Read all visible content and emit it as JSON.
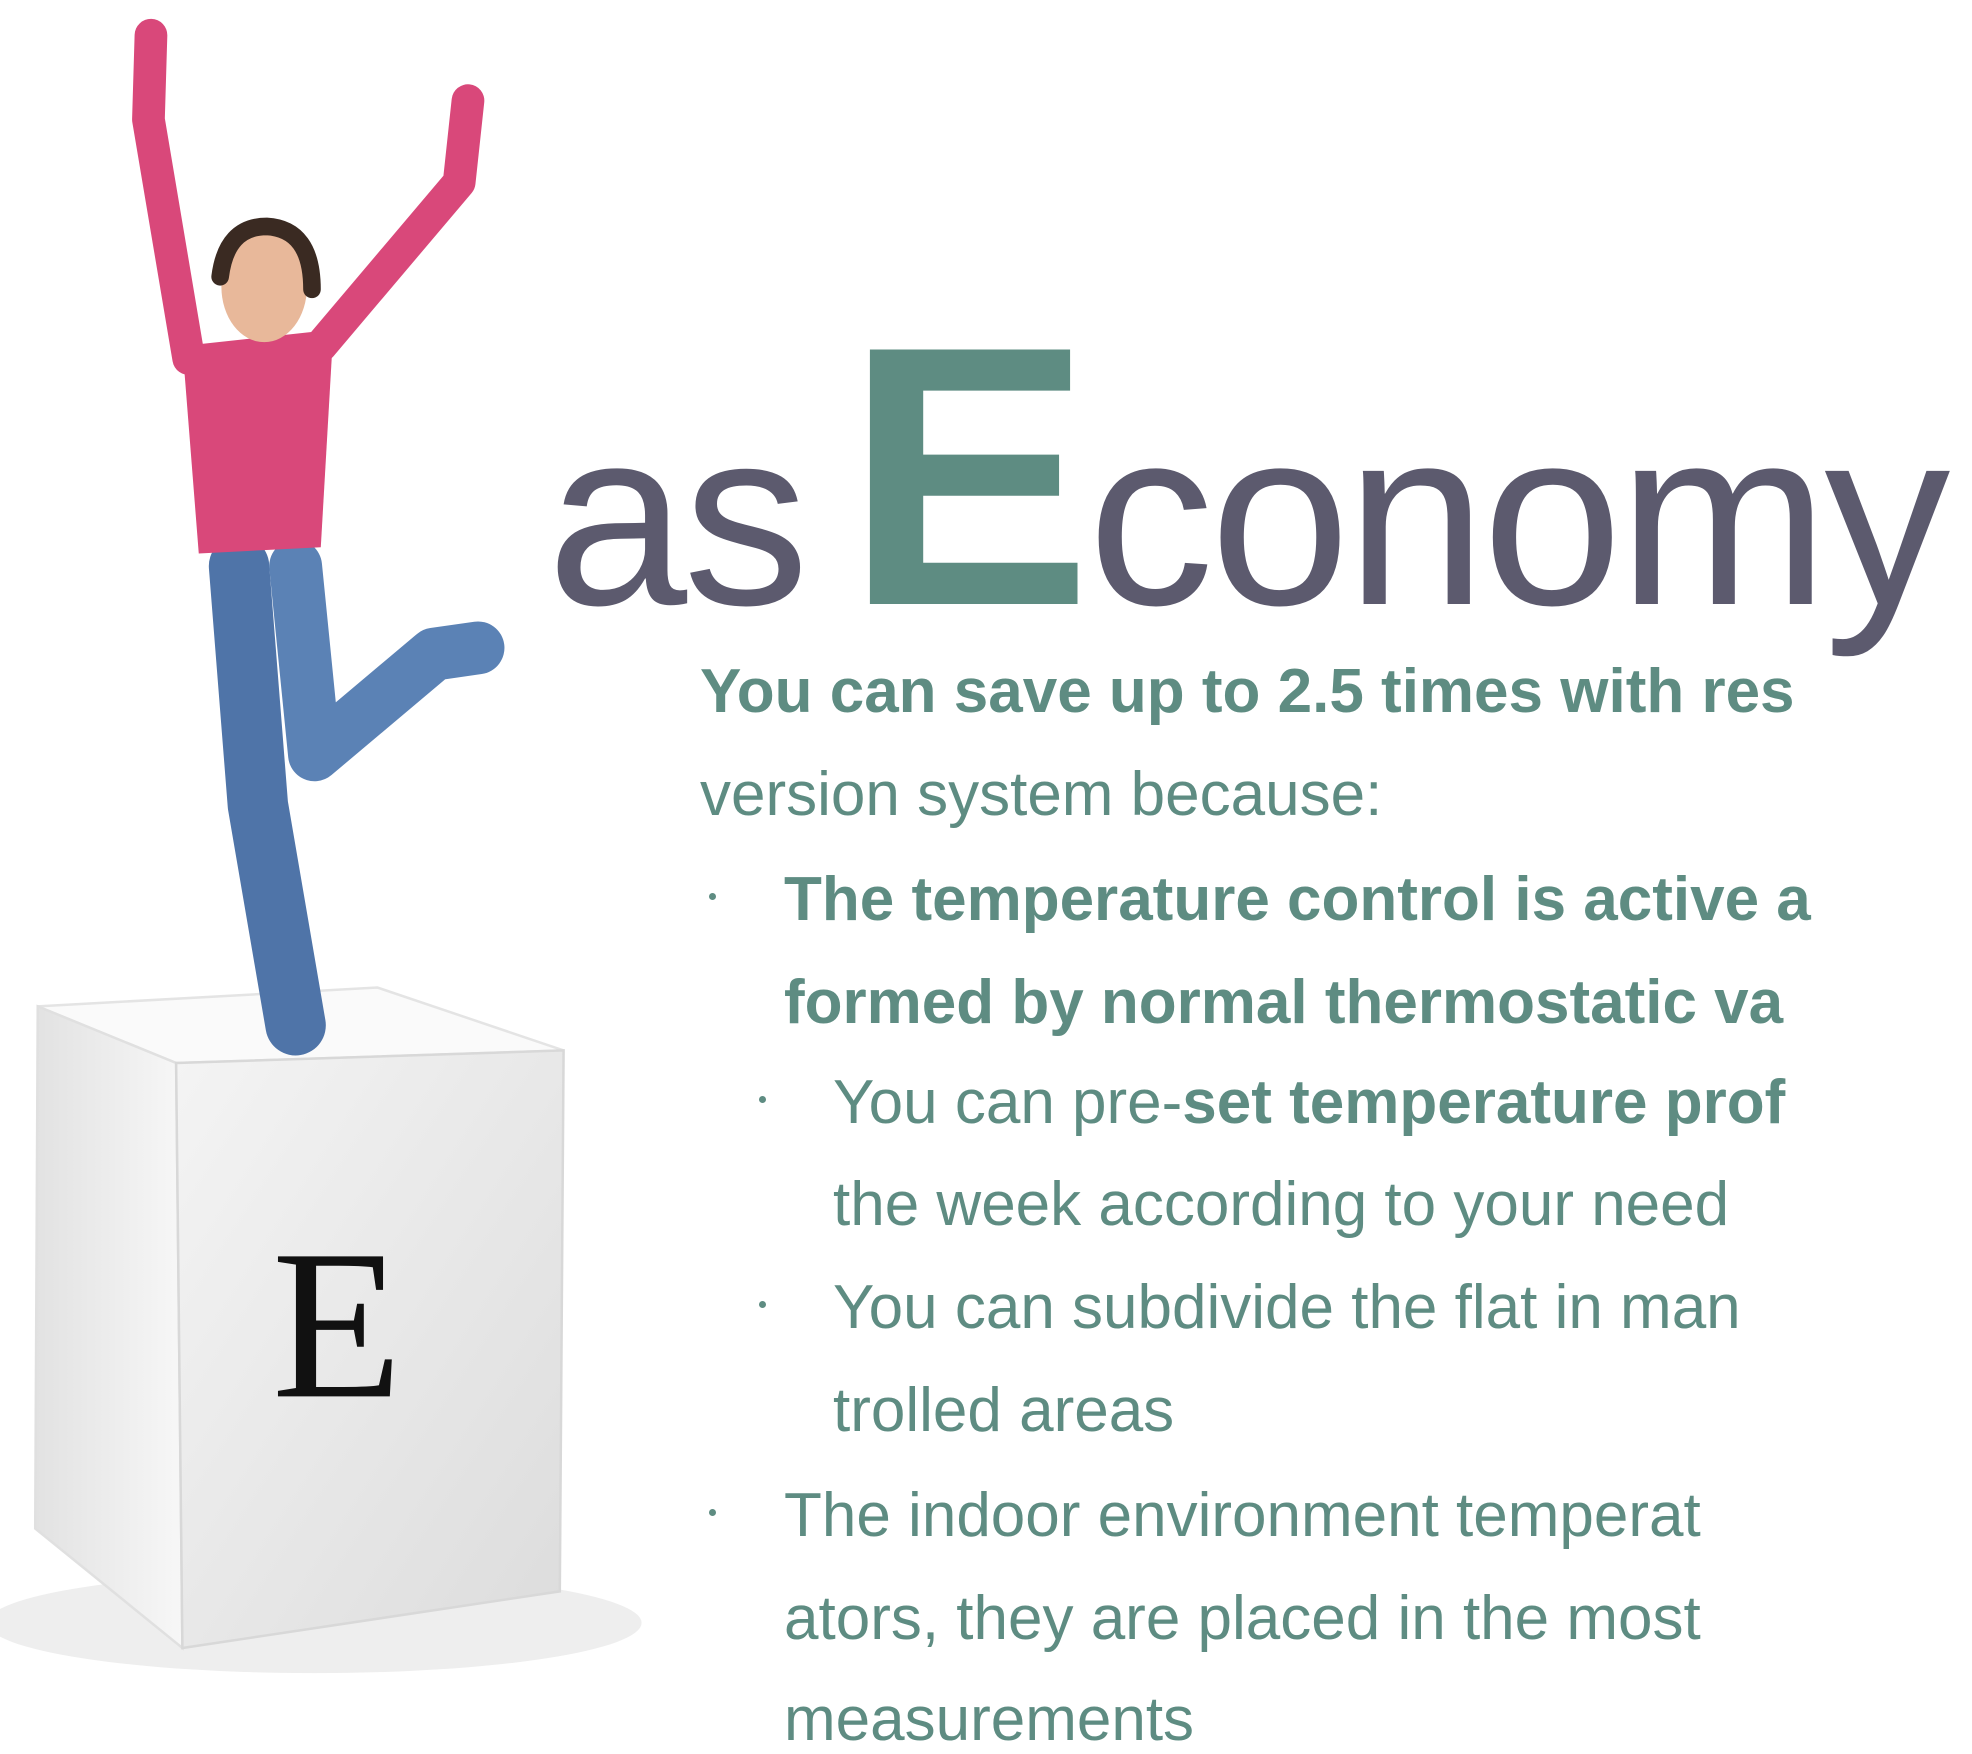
{
  "heading": {
    "prefix": "as",
    "initial": "E",
    "rest": "conomy"
  },
  "cube_letter": "E",
  "body": {
    "lines": [
      [
        "You can save up to 2.5 times with res"
      ],
      [
        "version system because:"
      ],
      [
        "The temperature control is active a"
      ],
      [
        "formed by normal thermostatic va"
      ],
      [
        "You can pre-",
        "set temperature prof"
      ],
      [
        "the week according to your need"
      ],
      [
        "You can subdivide the flat in man"
      ],
      [
        "trolled areas"
      ],
      [
        "The indoor environment temperat"
      ],
      [
        "ators, they are placed in the most"
      ],
      [
        "measurements"
      ]
    ]
  }
}
